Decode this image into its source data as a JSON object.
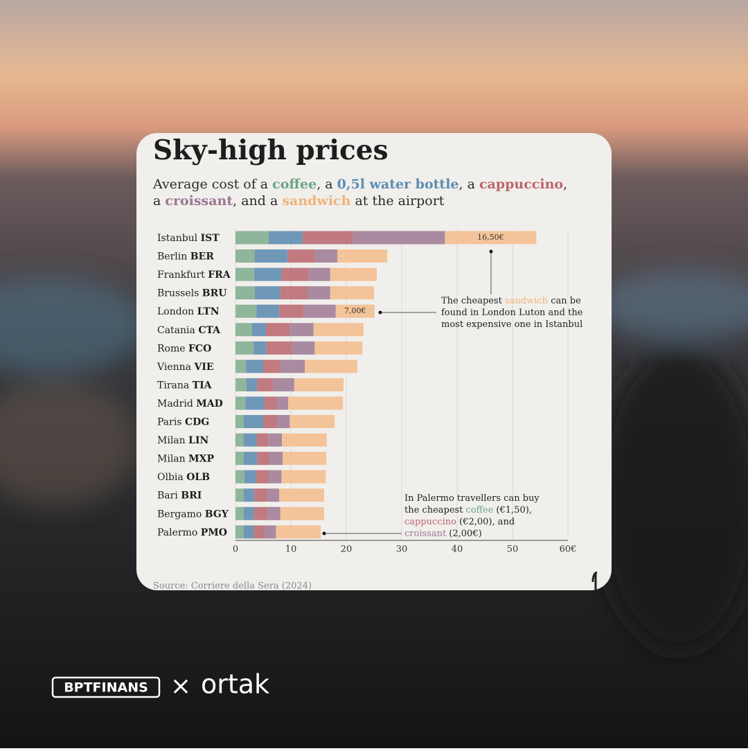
{
  "chart_data": {
    "type": "stacked_barh",
    "title": "Sky-high prices",
    "subtitle_parts": [
      "Average cost of a ",
      ", a ",
      ", a ",
      ",",
      "a ",
      ", and a ",
      " at the airport"
    ],
    "categories": [
      "Istanbul IST",
      "Berlin BER",
      "Frankfurt FRA",
      "Brussels BRU",
      "London LTN",
      "Catania CTA",
      "Rome FCO",
      "Vienna VIE",
      "Tirana TIA",
      "Madrid MAD",
      "Paris CDG",
      "Milan LIN",
      "Milan MXP",
      "Olbia OLB",
      "Bari BRI",
      "Bergamo BGY",
      "Palermo PMO"
    ],
    "series": [
      {
        "name": "coffee",
        "color": "#8fb59a",
        "text_color": "#6aa583",
        "values": [
          6.0,
          3.5,
          3.4,
          3.5,
          3.8,
          3.0,
          3.3,
          1.9,
          2.0,
          1.8,
          1.5,
          1.5,
          1.5,
          1.6,
          1.5,
          1.5,
          1.5
        ]
      },
      {
        "name": "0,5l water bottle",
        "color": "#6f97b8",
        "text_color": "#5b8db3",
        "values": [
          6.1,
          5.9,
          4.9,
          4.6,
          4.1,
          2.5,
          2.3,
          3.1,
          1.9,
          3.4,
          3.5,
          2.3,
          2.4,
          2.1,
          1.9,
          1.8,
          1.8
        ]
      },
      {
        "name": "cappuccino",
        "color": "#c07a80",
        "text_color": "#b9656c",
        "values": [
          9.1,
          5.0,
          4.9,
          4.9,
          4.4,
          4.3,
          4.6,
          3.0,
          2.9,
          2.3,
          2.5,
          2.1,
          2.1,
          2.3,
          2.4,
          2.5,
          2.0
        ]
      },
      {
        "name": "croissant",
        "color": "#a98aa0",
        "text_color": "#9b7792",
        "values": [
          16.6,
          4.0,
          3.9,
          4.1,
          5.8,
          4.3,
          4.1,
          4.5,
          3.8,
          2.0,
          2.3,
          2.5,
          2.5,
          2.3,
          2.1,
          2.3,
          2.0
        ]
      },
      {
        "name": "sandwich",
        "color": "#f3c49a",
        "text_color": "#f0b27a",
        "values": [
          16.5,
          9.0,
          8.4,
          7.9,
          7.0,
          9.0,
          8.6,
          9.5,
          8.9,
          9.9,
          8.1,
          8.1,
          7.9,
          8.0,
          8.1,
          7.9,
          8.1
        ],
        "value_labels": [
          "16,50€",
          null,
          null,
          null,
          "7,00€",
          null,
          null,
          null,
          null,
          null,
          null,
          null,
          null,
          null,
          null,
          null,
          null
        ]
      }
    ],
    "xlim": [
      0,
      60
    ],
    "xticks": [
      0,
      10,
      20,
      30,
      40,
      50,
      {
        "value": 60,
        "label": "60€"
      }
    ],
    "grid": true,
    "annotations": [
      {
        "lines": [
          [
            {
              "text": "The cheapest "
            },
            {
              "text": "sandwich",
              "color": "#f0b27a"
            },
            {
              "text": " can be"
            }
          ],
          [
            {
              "text": "found in London Luton and the"
            }
          ],
          [
            {
              "text": "most expensive one in Istanbul"
            }
          ]
        ]
      },
      {
        "lines": [
          [
            {
              "text": "In Palermo travellers can buy"
            }
          ],
          [
            {
              "text": "the cheapest "
            },
            {
              "text": "coffee",
              "color": "#6aa583"
            },
            {
              "text": " (€1,50),"
            }
          ],
          [
            {
              "text": "cappuccino",
              "color": "#b9656c"
            },
            {
              "text": " (€2,00), and"
            }
          ],
          [
            {
              "text": "croissant",
              "color": "#9b7792"
            },
            {
              "text": " (2,00€)"
            }
          ]
        ]
      }
    ],
    "source": "Source:  Corriere della Sera (2024)"
  },
  "branding": {
    "left": "BPTFINANS",
    "separator": "×",
    "right": "ortak"
  }
}
